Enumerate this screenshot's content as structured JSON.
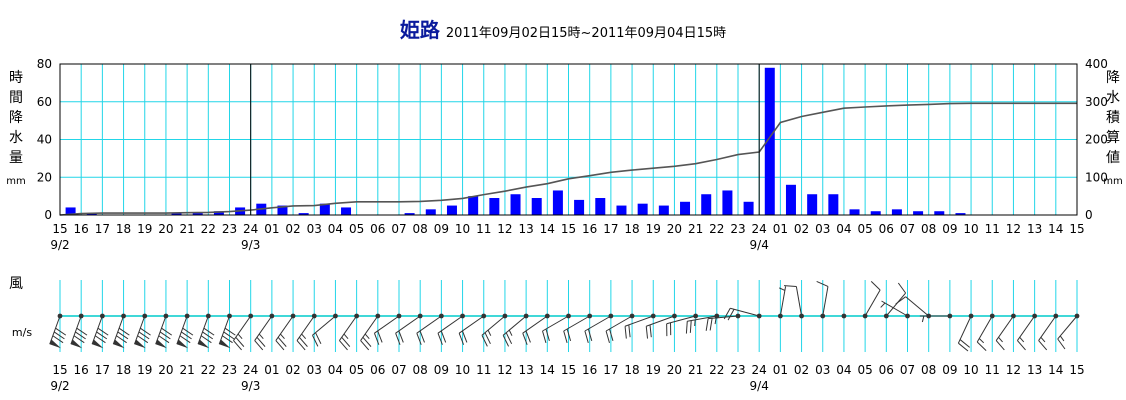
{
  "title": {
    "station": "姫路",
    "period": "2011年09月02日15時~2011年09月04日15時"
  },
  "chart_data": {
    "type": "bar",
    "title": "姫路 2011年09月02日15時~2011年09月04日15時",
    "x_hours": [
      "15",
      "16",
      "17",
      "18",
      "19",
      "20",
      "21",
      "22",
      "23",
      "24",
      "01",
      "02",
      "03",
      "04",
      "05",
      "06",
      "07",
      "08",
      "09",
      "10",
      "11",
      "12",
      "13",
      "14",
      "15",
      "16",
      "17",
      "18",
      "19",
      "20",
      "21",
      "22",
      "23",
      "24",
      "01",
      "02",
      "03",
      "04",
      "05",
      "06",
      "07",
      "08",
      "09",
      "10",
      "11",
      "12",
      "13",
      "14",
      "15"
    ],
    "date_labels": [
      {
        "index": 0,
        "text": "9/2"
      },
      {
        "index": 9,
        "text": "9/3"
      },
      {
        "index": 33,
        "text": "9/4"
      }
    ],
    "series": [
      {
        "name": "時間降水量",
        "kind": "bar",
        "axis": "left",
        "values": [
          4,
          1,
          0,
          0,
          0,
          1,
          1,
          2,
          4,
          6,
          5,
          1,
          6,
          4,
          0,
          0,
          1,
          3,
          5,
          10,
          9,
          11,
          9,
          13,
          8,
          9,
          5,
          6,
          5,
          7,
          11,
          13,
          7,
          78,
          16,
          11,
          11,
          3,
          2,
          3,
          2,
          2,
          1,
          0,
          0,
          0,
          0,
          0
        ]
      },
      {
        "name": "降水積算値",
        "kind": "line",
        "axis": "right",
        "values": [
          0,
          4,
          5,
          5,
          5,
          5,
          6,
          7,
          9,
          13,
          19,
          24,
          25,
          31,
          35,
          35,
          35,
          36,
          39,
          44,
          54,
          63,
          74,
          83,
          96,
          104,
          113,
          119,
          124,
          129,
          136,
          147,
          160,
          167,
          245,
          261,
          272,
          283,
          286,
          289,
          291,
          293,
          295,
          296,
          296,
          296,
          296,
          296,
          296
        ]
      }
    ],
    "y_left": {
      "label": "時間降水量",
      "unit": "mm",
      "ticks": [
        0,
        20,
        40,
        60,
        80
      ],
      "range": [
        0,
        80
      ]
    },
    "y_right": {
      "label": "降水積算値",
      "unit": "mm",
      "ticks": [
        0,
        100,
        200,
        300,
        400
      ],
      "range": [
        0,
        400
      ]
    },
    "colors": {
      "bar": "#0000ff",
      "line": "#555555",
      "grid": "#22d6e8",
      "axis": "#000000",
      "title": "#0a1a9c"
    },
    "grid": true,
    "wind": {
      "label": "風",
      "unit": "m/s",
      "axis_color": "#00cccc",
      "barbs": [
        {
          "dir": 200,
          "speed": 30,
          "mark": "flag"
        },
        {
          "dir": 200,
          "speed": 30,
          "mark": "flag"
        },
        {
          "dir": 200,
          "speed": 30,
          "mark": "flag"
        },
        {
          "dir": 200,
          "speed": 30,
          "mark": "flag"
        },
        {
          "dir": 200,
          "speed": 30,
          "mark": "flag"
        },
        {
          "dir": 200,
          "speed": 30,
          "mark": "flag"
        },
        {
          "dir": 200,
          "speed": 30,
          "mark": "flag"
        },
        {
          "dir": 200,
          "speed": 30,
          "mark": "flag"
        },
        {
          "dir": 200,
          "speed": 30,
          "mark": "flag"
        },
        {
          "dir": 215,
          "speed": 25,
          "mark": "barbs"
        },
        {
          "dir": 215,
          "speed": 25,
          "mark": "barbs"
        },
        {
          "dir": 215,
          "speed": 25,
          "mark": "barbs"
        },
        {
          "dir": 215,
          "speed": 25,
          "mark": "barbs"
        },
        {
          "dir": 230,
          "speed": 20,
          "mark": "barbs"
        },
        {
          "dir": 215,
          "speed": 25,
          "mark": "barbs"
        },
        {
          "dir": 215,
          "speed": 25,
          "mark": "barbs"
        },
        {
          "dir": 235,
          "speed": 20,
          "mark": "barbs"
        },
        {
          "dir": 235,
          "speed": 20,
          "mark": "barbs"
        },
        {
          "dir": 235,
          "speed": 20,
          "mark": "barbs"
        },
        {
          "dir": 235,
          "speed": 20,
          "mark": "barbs"
        },
        {
          "dir": 235,
          "speed": 20,
          "mark": "barbs"
        },
        {
          "dir": 230,
          "speed": 25,
          "mark": "barbs"
        },
        {
          "dir": 230,
          "speed": 25,
          "mark": "barbs"
        },
        {
          "dir": 235,
          "speed": 20,
          "mark": "barbs"
        },
        {
          "dir": 240,
          "speed": 20,
          "mark": "barbs"
        },
        {
          "dir": 240,
          "speed": 20,
          "mark": "barbs"
        },
        {
          "dir": 240,
          "speed": 20,
          "mark": "barbs"
        },
        {
          "dir": 240,
          "speed": 20,
          "mark": "barbs"
        },
        {
          "dir": 250,
          "speed": 20,
          "mark": "barbs"
        },
        {
          "dir": 250,
          "speed": 20,
          "mark": "barbs"
        },
        {
          "dir": 255,
          "speed": 20,
          "mark": "barbs"
        },
        {
          "dir": 260,
          "speed": 25,
          "mark": "barbs"
        },
        {
          "dir": 265,
          "speed": 25,
          "mark": "barbs"
        },
        {
          "dir": 285,
          "speed": 20,
          "mark": "barbs"
        },
        {
          "dir": 10,
          "speed": 5,
          "mark": "barbs"
        },
        {
          "dir": 350,
          "speed": 10,
          "mark": "barbs"
        },
        {
          "dir": 10,
          "speed": 10,
          "mark": "barbs"
        },
        {
          "dir": 0,
          "speed": 0,
          "mark": "calm"
        },
        {
          "dir": 30,
          "speed": 10,
          "mark": "barbs"
        },
        {
          "dir": 40,
          "speed": 10,
          "mark": "barbs"
        },
        {
          "dir": 300,
          "speed": 5,
          "mark": "barbs"
        },
        {
          "dir": 310,
          "speed": 10,
          "mark": "barbs"
        },
        {
          "dir": 270,
          "speed": 5,
          "mark": "barbs"
        },
        {
          "dir": 205,
          "speed": 20,
          "mark": "barbs"
        },
        {
          "dir": 210,
          "speed": 15,
          "mark": "barbs"
        },
        {
          "dir": 215,
          "speed": 15,
          "mark": "barbs"
        },
        {
          "dir": 215,
          "speed": 15,
          "mark": "barbs"
        },
        {
          "dir": 215,
          "speed": 15,
          "mark": "barbs"
        },
        {
          "dir": 220,
          "speed": 15,
          "mark": "barbs"
        }
      ]
    }
  }
}
